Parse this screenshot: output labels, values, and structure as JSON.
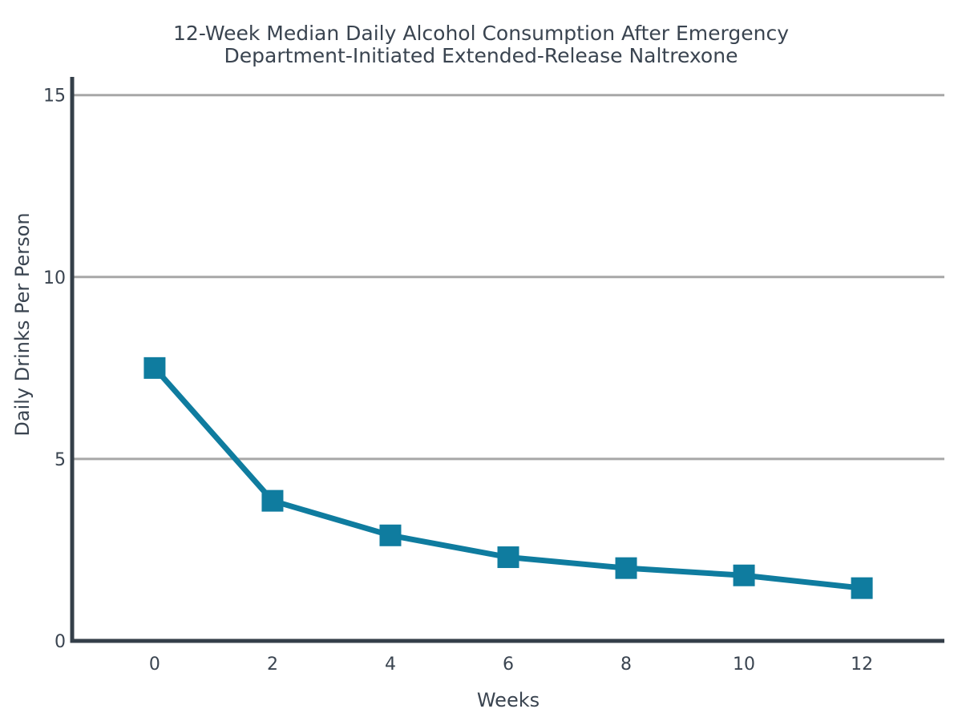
{
  "chart_data": {
    "type": "line",
    "title_lines": [
      "12-Week Median Daily Alcohol Consumption After Emergency",
      "Department-Initiated Extended-Release Naltrexone"
    ],
    "xlabel": "Weeks",
    "ylabel": "Daily Drinks Per Person",
    "x": [
      0,
      2,
      4,
      6,
      8,
      10,
      12
    ],
    "series": [
      {
        "values": [
          7.5,
          3.85,
          2.9,
          2.3,
          2.0,
          1.8,
          1.45
        ]
      }
    ],
    "x_ticks": [
      "0",
      "2",
      "4",
      "6",
      "8",
      "10",
      "12"
    ],
    "y_ticks": [
      "0",
      "5",
      "10",
      "15"
    ],
    "xlim": [
      -1.4,
      13.4
    ],
    "ylim": [
      0,
      15.5
    ],
    "grid": "horizontal",
    "marker": "square",
    "colors": {
      "series": "#0f7c9f",
      "axis": "#343f49",
      "grid": "#a7a7a7",
      "text": "#3a4450"
    }
  }
}
